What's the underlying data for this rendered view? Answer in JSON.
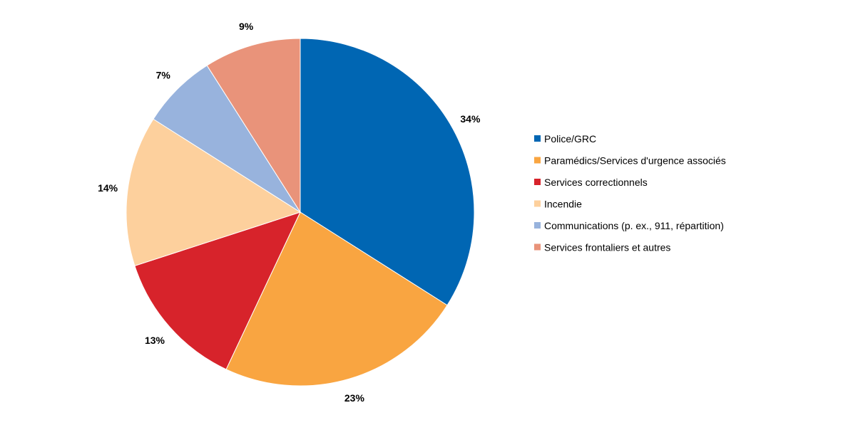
{
  "chart_data": {
    "type": "pie",
    "title": "",
    "legend_position": "right",
    "slices": [
      {
        "label": "Police/GRC",
        "value": 34,
        "display": "34%",
        "color": "#0066b3"
      },
      {
        "label": "Paramédics/Services d'urgence associés",
        "value": 23,
        "display": "23%",
        "color": "#f9a541"
      },
      {
        "label": "Services correctionnels",
        "value": 13,
        "display": "13%",
        "color": "#d7232b"
      },
      {
        "label": "Incendie",
        "value": 14,
        "display": "14%",
        "color": "#fdd09d"
      },
      {
        "label": "Communications (p. ex., 911, répartition)",
        "value": 7,
        "display": "7%",
        "color": "#98b3dd"
      },
      {
        "label": "Services frontaliers et autres",
        "value": 9,
        "display": "9%",
        "color": "#e9937a"
      }
    ]
  }
}
